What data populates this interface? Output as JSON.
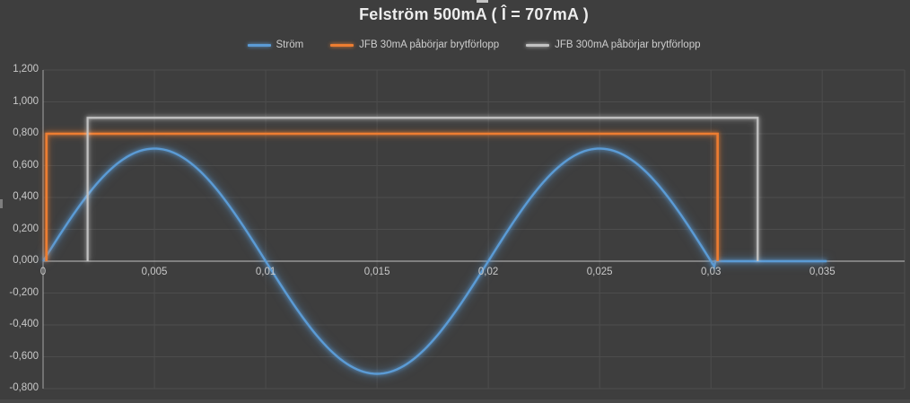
{
  "chart_data": {
    "type": "line",
    "title": "Felström 500mA ( Î = 707mA )",
    "xlabel": "",
    "ylabel": "",
    "xlim": [
      0,
      0.0387
    ],
    "ylim": [
      -0.8,
      1.2
    ],
    "grid": true,
    "legend_position": "top-center",
    "x_ticks": {
      "values": [
        0,
        0.005,
        0.01,
        0.015,
        0.02,
        0.025,
        0.03,
        0.035
      ],
      "labels": [
        "0",
        "0,005",
        "0,01",
        "0,015",
        "0,02",
        "0,025",
        "0,03",
        "0,035"
      ]
    },
    "y_ticks": {
      "values": [
        1.2,
        1.0,
        0.8,
        0.6,
        0.4,
        0.2,
        0.0,
        -0.2,
        -0.4,
        -0.6,
        -0.8
      ],
      "labels": [
        "1,200",
        "1,000",
        "0,800",
        "0,600",
        "0,400",
        "0,200",
        "0,000",
        "-0,200",
        "-0,400",
        "-0,600",
        "-0,800"
      ]
    },
    "series": [
      {
        "name": "Ström",
        "color": "#5B9BD5",
        "kind": "sine",
        "amplitude": 0.707,
        "frequency_hz": 50,
        "t_start": 0,
        "t_sine_end": 0.0302,
        "t_flat_end": 0.0352,
        "flat_value": 0,
        "key_points": [
          {
            "t": 0,
            "y": 0
          },
          {
            "t": 0.005,
            "y": 0.707
          },
          {
            "t": 0.01,
            "y": 0
          },
          {
            "t": 0.015,
            "y": -0.707
          },
          {
            "t": 0.02,
            "y": 0
          },
          {
            "t": 0.025,
            "y": 0.707
          },
          {
            "t": 0.0302,
            "y": 0
          },
          {
            "t": 0.0352,
            "y": 0
          }
        ]
      },
      {
        "name": "JFB 30mA påbörjar brytförlopp",
        "color": "#ED7D31",
        "kind": "step",
        "level": 0.8,
        "t_rise": 0.00015,
        "t_fall": 0.0303
      },
      {
        "name": "JFB 300mA påbörjar brytförlopp",
        "color": "#C2C2C2",
        "kind": "step",
        "level": 0.9,
        "t_rise": 0.002,
        "t_fall": 0.0321
      }
    ],
    "colors": {
      "background": "#3E3E3E",
      "gridline": "#4D4D4D",
      "axis_line": "#A6A6A6",
      "zero_line": "#C3C3C3",
      "tick_text": "#C9C9C9",
      "title_text": "#EDEDED"
    }
  }
}
